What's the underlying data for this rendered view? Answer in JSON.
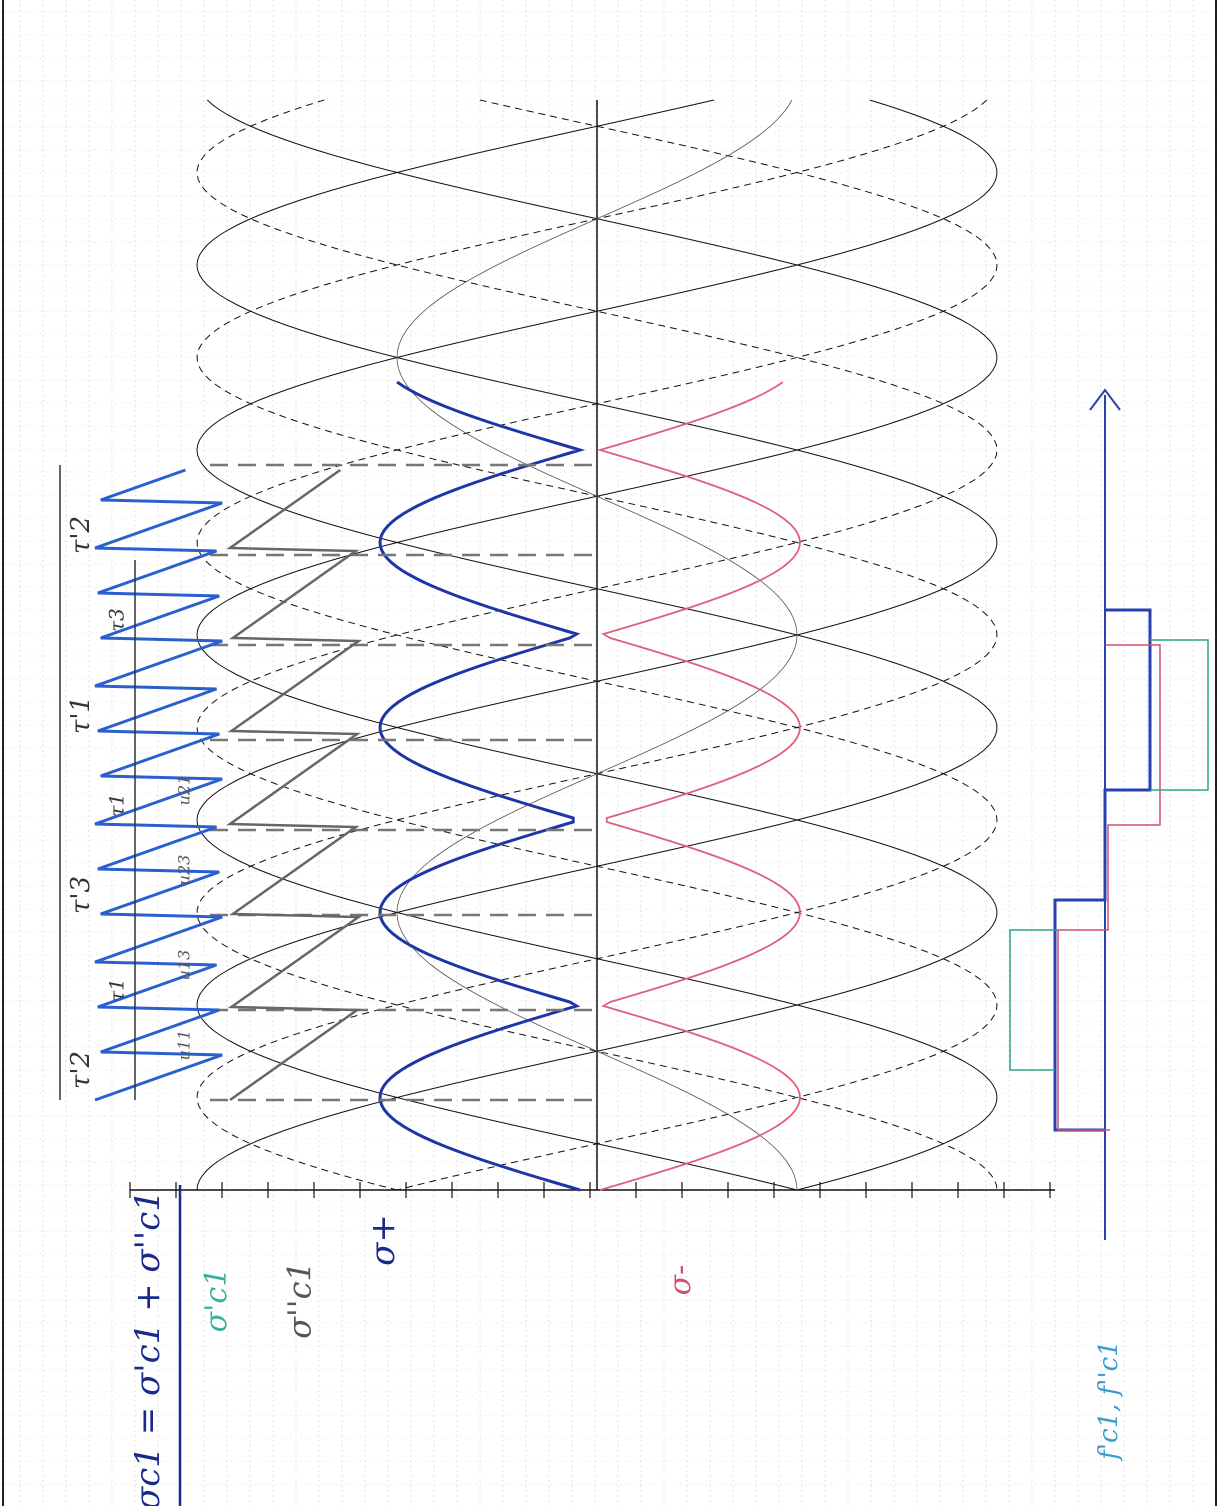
{
  "labels": {
    "sum": "σc1 = σ'c1 + σ''c1",
    "prime": "σ'c1",
    "dprime": "σ''c1",
    "plus": "σ+",
    "minus": "σ-",
    "f": "f'c1, f''c1"
  },
  "intervals": [
    "τ'2",
    "τ'1",
    "τ'3",
    "τ'2"
  ],
  "sub_intervals": [
    "τ3",
    "τ1",
    "τ1"
  ],
  "u_labels": [
    "u11",
    "u13",
    "u23",
    "u21"
  ]
}
